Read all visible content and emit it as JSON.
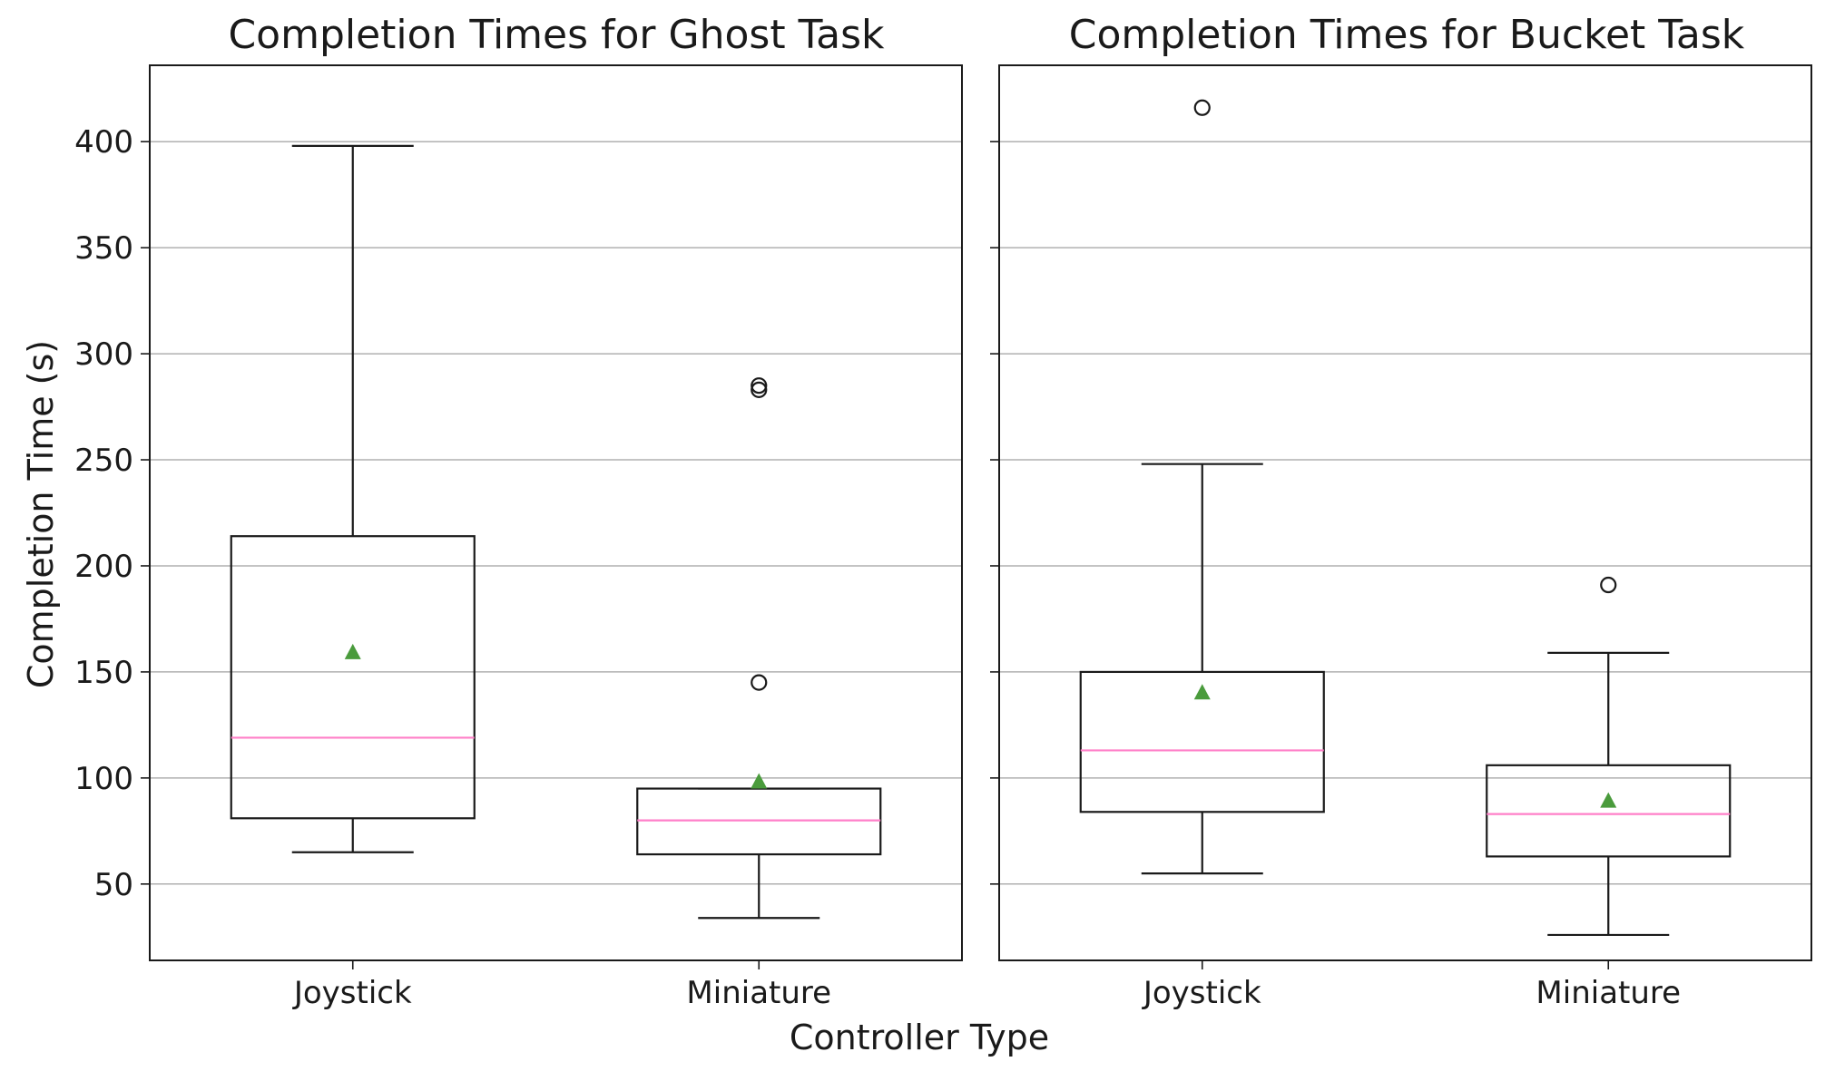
{
  "chart_data": [
    {
      "type": "box",
      "title": "Completion Times for Ghost Task",
      "ylabel": "Completion Time (s)",
      "xlabel": "Controller Type",
      "categories": [
        "Joystick",
        "Miniature"
      ],
      "ylim": [
        14,
        436
      ],
      "yticks": [
        "50",
        "100",
        "150",
        "200",
        "250",
        "300",
        "350",
        "400"
      ],
      "grid": "horizontal",
      "boxes": [
        {
          "category": "Joystick",
          "whisker_low": 65,
          "q1": 81,
          "median": 119,
          "q3": 214,
          "whisker_high": 398,
          "mean": 159,
          "outliers": []
        },
        {
          "category": "Miniature",
          "whisker_low": 34,
          "q1": 64,
          "median": 80,
          "q3": 95,
          "whisker_high": 95,
          "mean": 98,
          "outliers": [
            145,
            283,
            285
          ]
        }
      ]
    },
    {
      "type": "box",
      "title": "Completion Times for Bucket Task",
      "categories": [
        "Joystick",
        "Miniature"
      ],
      "ylim": [
        14,
        436
      ],
      "grid": "horizontal",
      "boxes": [
        {
          "category": "Joystick",
          "whisker_low": 55,
          "q1": 84,
          "median": 113,
          "q3": 150,
          "whisker_high": 248,
          "mean": 140,
          "outliers": [
            416
          ]
        },
        {
          "category": "Miniature",
          "whisker_low": 26,
          "q1": 63,
          "median": 83,
          "q3": 106,
          "whisker_high": 159,
          "mean": 89,
          "outliers": [
            191
          ]
        }
      ]
    }
  ],
  "colors": {
    "box": "#1a1a1a",
    "median": "#ff7fc8",
    "mean": "#4a9b3c",
    "grid": "#b0b0b0"
  }
}
